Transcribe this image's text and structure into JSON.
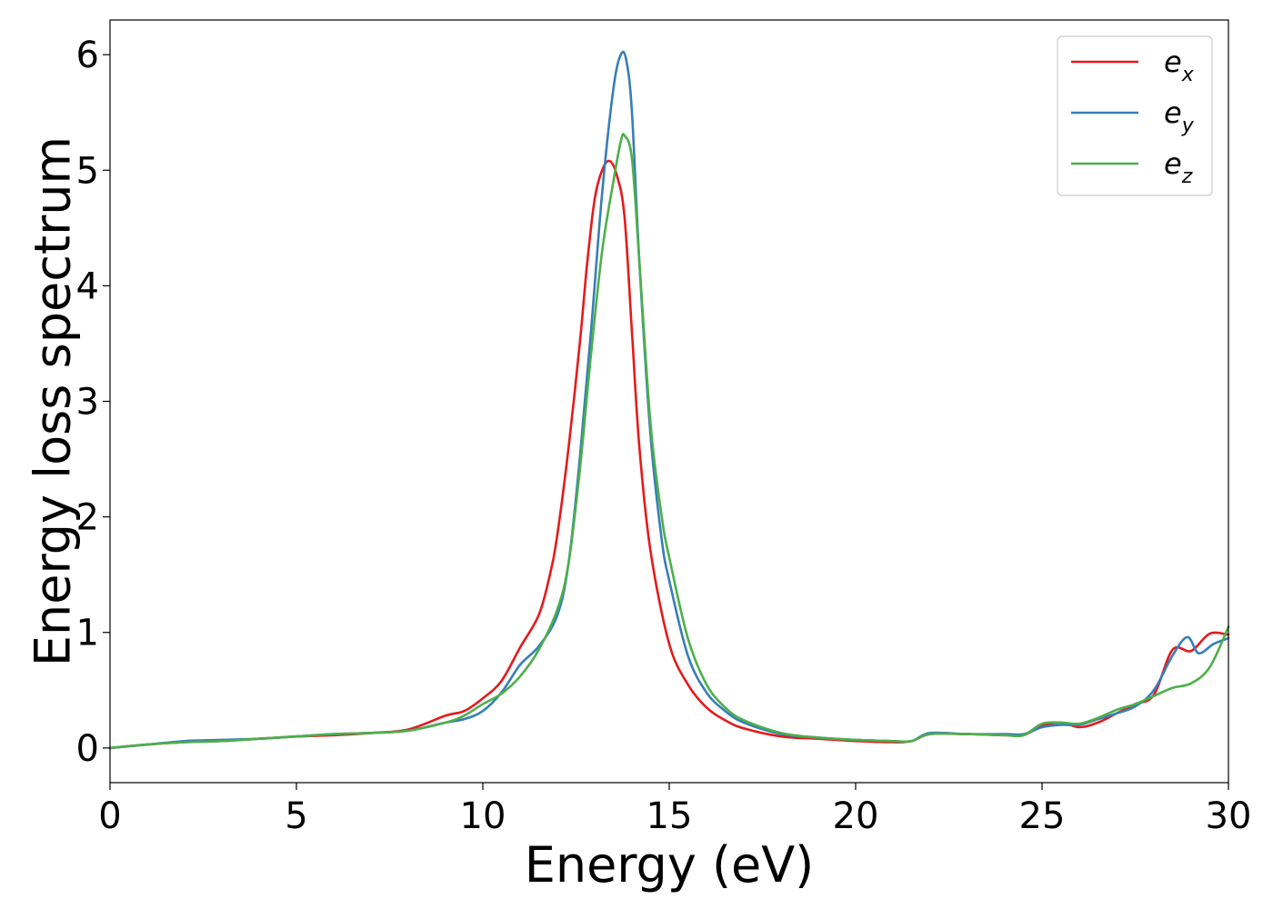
{
  "chart_data": {
    "type": "line",
    "title": "",
    "xlabel": "Energy (eV)",
    "ylabel": "Energy loss spectrum",
    "xlim": [
      0,
      30
    ],
    "ylim": [
      -0.3,
      6.3
    ],
    "xticks": [
      0,
      5,
      10,
      15,
      20,
      25,
      30
    ],
    "xtick_labels": [
      "0",
      "5",
      "10",
      "15",
      "20",
      "25",
      "30"
    ],
    "yticks": [
      0,
      1,
      2,
      3,
      4,
      5,
      6
    ],
    "ytick_labels": [
      "0",
      "1",
      "2",
      "3",
      "4",
      "5",
      "6"
    ],
    "grid": false,
    "legend_position": "top-right",
    "series": [
      {
        "name": "e_x",
        "legend_base": "e",
        "legend_sub": "x",
        "color": "#e41a1c",
        "x": [
          0,
          1,
          2,
          3,
          4,
          5,
          6,
          7,
          8,
          9,
          9.5,
          10,
          10.5,
          11,
          11.5,
          11.8,
          12,
          12.3,
          12.6,
          12.8,
          13,
          13.2,
          13.4,
          13.6,
          13.8,
          14,
          14.2,
          14.5,
          15,
          15.5,
          16,
          16.5,
          17,
          18,
          19,
          20,
          21,
          21.5,
          22,
          23,
          24,
          24.5,
          25,
          25.5,
          26,
          26.5,
          27,
          27.5,
          28,
          28.5,
          29,
          29.5,
          30
        ],
        "y": [
          0,
          0.03,
          0.05,
          0.06,
          0.08,
          0.1,
          0.11,
          0.13,
          0.16,
          0.28,
          0.32,
          0.43,
          0.58,
          0.87,
          1.15,
          1.5,
          1.85,
          2.6,
          3.5,
          4.2,
          4.75,
          5.0,
          5.08,
          4.95,
          4.6,
          3.6,
          2.6,
          1.7,
          0.9,
          0.55,
          0.35,
          0.24,
          0.17,
          0.1,
          0.08,
          0.06,
          0.05,
          0.06,
          0.12,
          0.12,
          0.11,
          0.11,
          0.19,
          0.22,
          0.18,
          0.22,
          0.3,
          0.38,
          0.46,
          0.85,
          0.84,
          0.99,
          0.98
        ]
      },
      {
        "name": "e_y",
        "legend_base": "e",
        "legend_sub": "y",
        "color": "#377eb8",
        "x": [
          0,
          1,
          2,
          3,
          4,
          5,
          6,
          7,
          8,
          9,
          9.5,
          10,
          10.5,
          11,
          11.5,
          12,
          12.3,
          12.6,
          12.9,
          13.2,
          13.5,
          13.7,
          13.85,
          14,
          14.2,
          14.5,
          14.8,
          15,
          15.5,
          16,
          16.5,
          17,
          18,
          19,
          20,
          21,
          21.5,
          22,
          23,
          24,
          24.5,
          25,
          25.5,
          26,
          26.5,
          27,
          27.5,
          28,
          28.5,
          28.9,
          29.2,
          29.6,
          30
        ],
        "y": [
          0,
          0.03,
          0.06,
          0.07,
          0.08,
          0.1,
          0.12,
          0.13,
          0.15,
          0.22,
          0.25,
          0.32,
          0.48,
          0.72,
          0.88,
          1.15,
          1.6,
          2.5,
          3.6,
          4.8,
          5.7,
          6.0,
          5.95,
          5.5,
          4.2,
          2.7,
          1.8,
          1.45,
          0.8,
          0.48,
          0.32,
          0.22,
          0.12,
          0.09,
          0.07,
          0.06,
          0.06,
          0.13,
          0.12,
          0.12,
          0.12,
          0.18,
          0.2,
          0.2,
          0.25,
          0.3,
          0.36,
          0.5,
          0.8,
          0.96,
          0.82,
          0.9,
          0.95
        ]
      },
      {
        "name": "e_z",
        "legend_base": "e",
        "legend_sub": "z",
        "color": "#4daf4a",
        "x": [
          0,
          1,
          2,
          3,
          4,
          5,
          6,
          7,
          8,
          9,
          9.5,
          10,
          10.5,
          11,
          11.5,
          12,
          12.3,
          12.6,
          12.9,
          13.2,
          13.5,
          13.7,
          13.8,
          14,
          14.2,
          14.5,
          14.8,
          15,
          15.5,
          16,
          16.5,
          17,
          18,
          19,
          20,
          21,
          21.5,
          22,
          23,
          24,
          24.5,
          25,
          25.5,
          26,
          26.5,
          27,
          27.5,
          28,
          28.5,
          29,
          29.5,
          30
        ],
        "y": [
          0,
          0.03,
          0.05,
          0.06,
          0.08,
          0.1,
          0.12,
          0.13,
          0.15,
          0.22,
          0.28,
          0.38,
          0.47,
          0.62,
          0.85,
          1.2,
          1.6,
          2.4,
          3.4,
          4.3,
          4.9,
          5.25,
          5.3,
          5.1,
          4.2,
          2.8,
          2.0,
          1.65,
          0.95,
          0.55,
          0.35,
          0.24,
          0.13,
          0.09,
          0.07,
          0.06,
          0.06,
          0.12,
          0.12,
          0.11,
          0.11,
          0.21,
          0.22,
          0.21,
          0.26,
          0.33,
          0.38,
          0.45,
          0.52,
          0.56,
          0.7,
          1.05
        ]
      }
    ]
  }
}
